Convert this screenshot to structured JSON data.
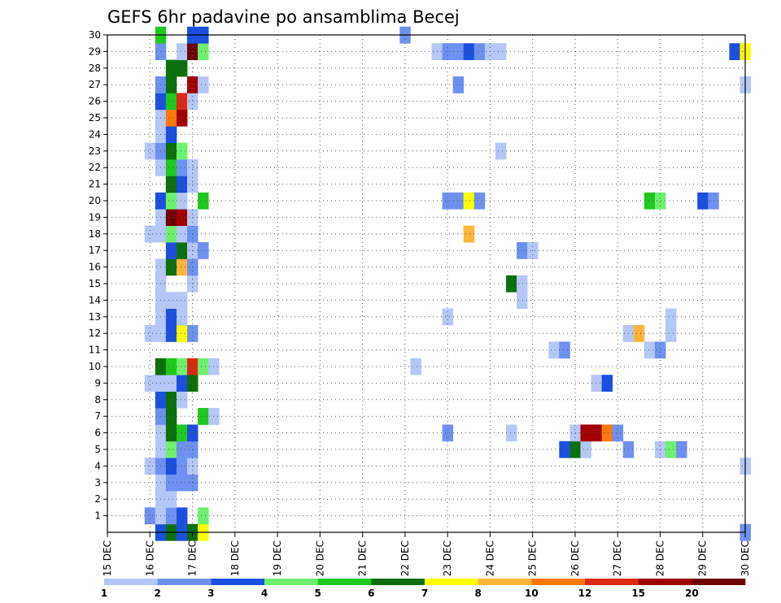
{
  "chart_data": {
    "type": "heatmap",
    "title": "GEFS 6hr padavine po ansamblima Becej",
    "xlabel": "",
    "ylabel": "",
    "y_ticks": [
      "1",
      "2",
      "3",
      "4",
      "5",
      "6",
      "7",
      "8",
      "9",
      "10",
      "11",
      "12",
      "13",
      "14",
      "15",
      "16",
      "17",
      "18",
      "19",
      "20",
      "21",
      "22",
      "23",
      "24",
      "25",
      "26",
      "27",
      "28",
      "29",
      "30"
    ],
    "x_ticks": [
      "15 DEC",
      "16 DEC",
      "17 DEC",
      "18 DEC",
      "19 DEC",
      "20 DEC",
      "21 DEC",
      "22 DEC",
      "23 DEC",
      "24 DEC",
      "25 DEC",
      "26 DEC",
      "27 DEC",
      "28 DEC",
      "29 DEC",
      "30 DEC"
    ],
    "x_range_days": [
      15,
      30
    ],
    "y_range_members": [
      0,
      30
    ],
    "step_hours": 6,
    "grid": true,
    "colorbar": {
      "labels": [
        "1",
        "2",
        "3",
        "4",
        "5",
        "6",
        "7",
        "8",
        "10",
        "12",
        "15",
        "20"
      ],
      "colors": [
        "#b4c7f7",
        "#6e91f0",
        "#1b4fe0",
        "#6ef06e",
        "#1ec81e",
        "#0b700b",
        "#ffff00",
        "#ffb43c",
        "#ff780a",
        "#dc2814",
        "#a00000",
        "#6e0000"
      ]
    },
    "cells": [
      {
        "m": 0,
        "d": 16.25,
        "v": 3
      },
      {
        "m": 0,
        "d": 16.5,
        "v": 6
      },
      {
        "m": 0,
        "d": 16.75,
        "v": 3
      },
      {
        "m": 0,
        "d": 17.0,
        "v": 6
      },
      {
        "m": 0,
        "d": 17.25,
        "v": 7
      },
      {
        "m": 0,
        "d": 30.0,
        "v": 2
      },
      {
        "m": 1,
        "d": 16.0,
        "v": 2
      },
      {
        "m": 1,
        "d": 16.25,
        "v": 1
      },
      {
        "m": 1,
        "d": 16.5,
        "v": 2
      },
      {
        "m": 1,
        "d": 16.75,
        "v": 3
      },
      {
        "m": 1,
        "d": 17.25,
        "v": 4
      },
      {
        "m": 2,
        "d": 16.25,
        "v": 1
      },
      {
        "m": 2,
        "d": 16.5,
        "v": 1
      },
      {
        "m": 3,
        "d": 16.25,
        "v": 1
      },
      {
        "m": 3,
        "d": 16.5,
        "v": 2
      },
      {
        "m": 3,
        "d": 16.75,
        "v": 2
      },
      {
        "m": 3,
        "d": 17.0,
        "v": 2
      },
      {
        "m": 4,
        "d": 16.0,
        "v": 1
      },
      {
        "m": 4,
        "d": 16.25,
        "v": 2
      },
      {
        "m": 4,
        "d": 16.5,
        "v": 3
      },
      {
        "m": 4,
        "d": 16.75,
        "v": 2
      },
      {
        "m": 4,
        "d": 17.0,
        "v": 1
      },
      {
        "m": 4,
        "d": 30.0,
        "v": 1
      },
      {
        "m": 5,
        "d": 16.25,
        "v": 1
      },
      {
        "m": 5,
        "d": 16.5,
        "v": 4
      },
      {
        "m": 5,
        "d": 16.75,
        "v": 2
      },
      {
        "m": 5,
        "d": 17.0,
        "v": 2
      },
      {
        "m": 5,
        "d": 25.75,
        "v": 3
      },
      {
        "m": 5,
        "d": 26.0,
        "v": 6
      },
      {
        "m": 5,
        "d": 26.25,
        "v": 1
      },
      {
        "m": 5,
        "d": 27.25,
        "v": 2
      },
      {
        "m": 5,
        "d": 28.0,
        "v": 1
      },
      {
        "m": 5,
        "d": 28.25,
        "v": 4
      },
      {
        "m": 5,
        "d": 28.5,
        "v": 2
      },
      {
        "m": 6,
        "d": 16.25,
        "v": 1
      },
      {
        "m": 6,
        "d": 16.5,
        "v": 6
      },
      {
        "m": 6,
        "d": 16.75,
        "v": 5
      },
      {
        "m": 6,
        "d": 17.0,
        "v": 3
      },
      {
        "m": 6,
        "d": 23.0,
        "v": 2
      },
      {
        "m": 6,
        "d": 24.5,
        "v": 1
      },
      {
        "m": 6,
        "d": 26.0,
        "v": 1
      },
      {
        "m": 6,
        "d": 26.25,
        "v": 15
      },
      {
        "m": 6,
        "d": 26.5,
        "v": 15
      },
      {
        "m": 6,
        "d": 26.75,
        "v": 10
      },
      {
        "m": 6,
        "d": 27.0,
        "v": 2
      },
      {
        "m": 7,
        "d": 16.25,
        "v": 2
      },
      {
        "m": 7,
        "d": 16.5,
        "v": 6
      },
      {
        "m": 7,
        "d": 17.25,
        "v": 5
      },
      {
        "m": 7,
        "d": 17.5,
        "v": 1
      },
      {
        "m": 8,
        "d": 16.25,
        "v": 3
      },
      {
        "m": 8,
        "d": 16.5,
        "v": 6
      },
      {
        "m": 8,
        "d": 16.75,
        "v": 1
      },
      {
        "m": 9,
        "d": 16.0,
        "v": 1
      },
      {
        "m": 9,
        "d": 16.25,
        "v": 1
      },
      {
        "m": 9,
        "d": 16.5,
        "v": 1
      },
      {
        "m": 9,
        "d": 16.75,
        "v": 3
      },
      {
        "m": 9,
        "d": 17.0,
        "v": 6
      },
      {
        "m": 9,
        "d": 26.5,
        "v": 1
      },
      {
        "m": 9,
        "d": 26.75,
        "v": 3
      },
      {
        "m": 10,
        "d": 16.25,
        "v": 6
      },
      {
        "m": 10,
        "d": 16.5,
        "v": 5
      },
      {
        "m": 10,
        "d": 16.75,
        "v": 4
      },
      {
        "m": 10,
        "d": 17.0,
        "v": 12
      },
      {
        "m": 10,
        "d": 17.25,
        "v": 4
      },
      {
        "m": 10,
        "d": 17.5,
        "v": 1
      },
      {
        "m": 10,
        "d": 22.25,
        "v": 1
      },
      {
        "m": 11,
        "d": 25.5,
        "v": 1
      },
      {
        "m": 11,
        "d": 25.75,
        "v": 2
      },
      {
        "m": 11,
        "d": 27.75,
        "v": 1
      },
      {
        "m": 11,
        "d": 28.0,
        "v": 2
      },
      {
        "m": 12,
        "d": 16.0,
        "v": 1
      },
      {
        "m": 12,
        "d": 16.25,
        "v": 1
      },
      {
        "m": 12,
        "d": 16.5,
        "v": 3
      },
      {
        "m": 12,
        "d": 16.75,
        "v": 7
      },
      {
        "m": 12,
        "d": 17.0,
        "v": 2
      },
      {
        "m": 12,
        "d": 27.25,
        "v": 1
      },
      {
        "m": 12,
        "d": 27.5,
        "v": 8
      },
      {
        "m": 12,
        "d": 28.25,
        "v": 1
      },
      {
        "m": 13,
        "d": 16.25,
        "v": 1
      },
      {
        "m": 13,
        "d": 16.5,
        "v": 3
      },
      {
        "m": 13,
        "d": 16.75,
        "v": 1
      },
      {
        "m": 13,
        "d": 23.0,
        "v": 1
      },
      {
        "m": 13,
        "d": 28.25,
        "v": 1
      },
      {
        "m": 14,
        "d": 16.25,
        "v": 1
      },
      {
        "m": 14,
        "d": 16.5,
        "v": 1
      },
      {
        "m": 14,
        "d": 16.75,
        "v": 1
      },
      {
        "m": 14,
        "d": 24.75,
        "v": 1
      },
      {
        "m": 15,
        "d": 16.25,
        "v": 1
      },
      {
        "m": 15,
        "d": 17.0,
        "v": 1
      },
      {
        "m": 15,
        "d": 24.5,
        "v": 6
      },
      {
        "m": 15,
        "d": 24.75,
        "v": 1
      },
      {
        "m": 16,
        "d": 16.25,
        "v": 1
      },
      {
        "m": 16,
        "d": 16.5,
        "v": 6
      },
      {
        "m": 16,
        "d": 16.75,
        "v": 8
      },
      {
        "m": 16,
        "d": 17.0,
        "v": 2
      },
      {
        "m": 17,
        "d": 16.5,
        "v": 3
      },
      {
        "m": 17,
        "d": 16.75,
        "v": 6
      },
      {
        "m": 17,
        "d": 17.0,
        "v": 1
      },
      {
        "m": 17,
        "d": 17.25,
        "v": 2
      },
      {
        "m": 17,
        "d": 24.75,
        "v": 2
      },
      {
        "m": 17,
        "d": 25.0,
        "v": 1
      },
      {
        "m": 18,
        "d": 16.0,
        "v": 1
      },
      {
        "m": 18,
        "d": 16.25,
        "v": 1
      },
      {
        "m": 18,
        "d": 16.5,
        "v": 4
      },
      {
        "m": 18,
        "d": 16.75,
        "v": 1
      },
      {
        "m": 18,
        "d": 17.0,
        "v": 2
      },
      {
        "m": 18,
        "d": 23.5,
        "v": 8
      },
      {
        "m": 19,
        "d": 16.25,
        "v": 1
      },
      {
        "m": 19,
        "d": 16.5,
        "v": 20
      },
      {
        "m": 19,
        "d": 16.75,
        "v": 15
      },
      {
        "m": 19,
        "d": 17.0,
        "v": 1
      },
      {
        "m": 20,
        "d": 16.25,
        "v": 3
      },
      {
        "m": 20,
        "d": 16.5,
        "v": 4
      },
      {
        "m": 20,
        "d": 16.75,
        "v": 1
      },
      {
        "m": 20,
        "d": 17.25,
        "v": 5
      },
      {
        "m": 20,
        "d": 23.0,
        "v": 2
      },
      {
        "m": 20,
        "d": 23.25,
        "v": 2
      },
      {
        "m": 20,
        "d": 23.5,
        "v": 7
      },
      {
        "m": 20,
        "d": 23.75,
        "v": 2
      },
      {
        "m": 20,
        "d": 27.75,
        "v": 5
      },
      {
        "m": 20,
        "d": 28.0,
        "v": 4
      },
      {
        "m": 20,
        "d": 29.0,
        "v": 3
      },
      {
        "m": 20,
        "d": 29.25,
        "v": 2
      },
      {
        "m": 21,
        "d": 16.5,
        "v": 6
      },
      {
        "m": 21,
        "d": 16.75,
        "v": 3
      },
      {
        "m": 21,
        "d": 17.0,
        "v": 1
      },
      {
        "m": 22,
        "d": 16.25,
        "v": 1
      },
      {
        "m": 22,
        "d": 16.5,
        "v": 5
      },
      {
        "m": 22,
        "d": 16.75,
        "v": 2
      },
      {
        "m": 22,
        "d": 17.0,
        "v": 1
      },
      {
        "m": 23,
        "d": 16.0,
        "v": 1
      },
      {
        "m": 23,
        "d": 16.25,
        "v": 2
      },
      {
        "m": 23,
        "d": 16.5,
        "v": 6
      },
      {
        "m": 23,
        "d": 16.75,
        "v": 4
      },
      {
        "m": 23,
        "d": 24.25,
        "v": 1
      },
      {
        "m": 24,
        "d": 16.25,
        "v": 1
      },
      {
        "m": 24,
        "d": 16.5,
        "v": 3
      },
      {
        "m": 25,
        "d": 16.25,
        "v": 1
      },
      {
        "m": 25,
        "d": 16.5,
        "v": 10
      },
      {
        "m": 25,
        "d": 16.75,
        "v": 15
      },
      {
        "m": 26,
        "d": 16.25,
        "v": 3
      },
      {
        "m": 26,
        "d": 16.5,
        "v": 5
      },
      {
        "m": 26,
        "d": 16.75,
        "v": 12
      },
      {
        "m": 26,
        "d": 17.0,
        "v": 1
      },
      {
        "m": 27,
        "d": 16.25,
        "v": 2
      },
      {
        "m": 27,
        "d": 16.5,
        "v": 6
      },
      {
        "m": 27,
        "d": 17.0,
        "v": 15
      },
      {
        "m": 27,
        "d": 17.25,
        "v": 1
      },
      {
        "m": 27,
        "d": 23.25,
        "v": 2
      },
      {
        "m": 27,
        "d": 30.0,
        "v": 1
      },
      {
        "m": 28,
        "d": 16.5,
        "v": 6
      },
      {
        "m": 28,
        "d": 16.75,
        "v": 6
      },
      {
        "m": 29,
        "d": 16.25,
        "v": 2
      },
      {
        "m": 29,
        "d": 16.75,
        "v": 1
      },
      {
        "m": 29,
        "d": 17.0,
        "v": 20
      },
      {
        "m": 29,
        "d": 17.25,
        "v": 4
      },
      {
        "m": 29,
        "d": 22.75,
        "v": 1
      },
      {
        "m": 29,
        "d": 23.0,
        "v": 2
      },
      {
        "m": 29,
        "d": 23.25,
        "v": 2
      },
      {
        "m": 29,
        "d": 23.5,
        "v": 3
      },
      {
        "m": 29,
        "d": 23.75,
        "v": 2
      },
      {
        "m": 29,
        "d": 24.0,
        "v": 1
      },
      {
        "m": 29,
        "d": 24.25,
        "v": 1
      },
      {
        "m": 29,
        "d": 29.75,
        "v": 3
      },
      {
        "m": 29,
        "d": 30.0,
        "v": 7
      },
      {
        "m": 30,
        "d": 16.25,
        "v": 5
      },
      {
        "m": 30,
        "d": 17.0,
        "v": 3
      },
      {
        "m": 30,
        "d": 17.25,
        "v": 3
      },
      {
        "m": 30,
        "d": 22.0,
        "v": 2
      }
    ]
  }
}
